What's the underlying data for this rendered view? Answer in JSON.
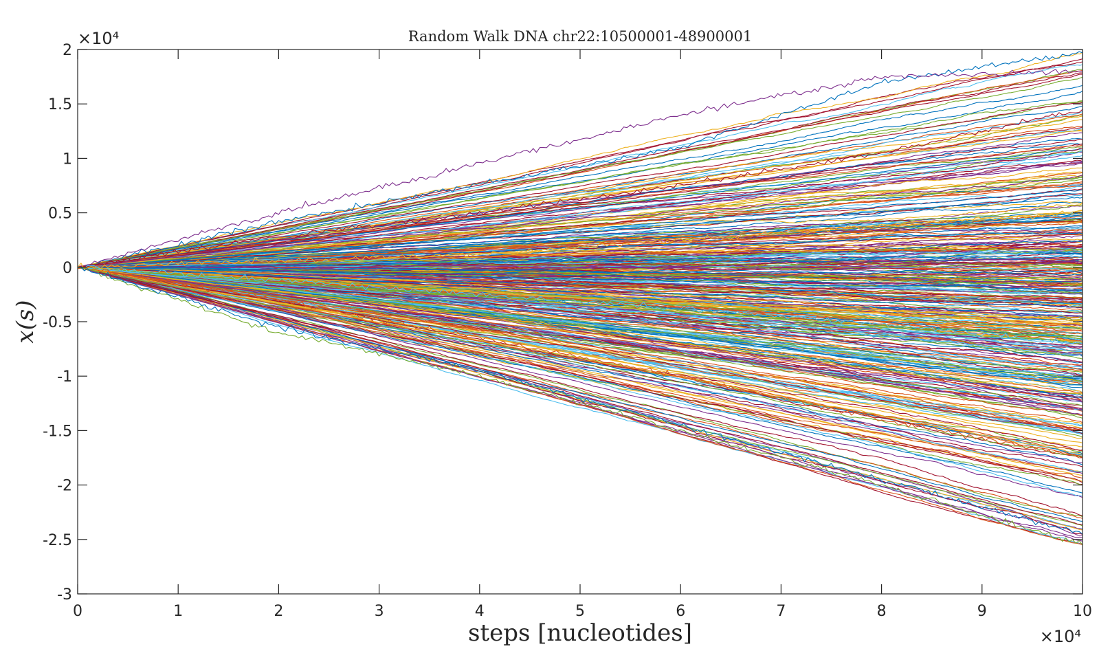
{
  "chart_data": {
    "type": "line",
    "title": "Random Walk DNA chr22:10500001-48900001",
    "xlabel": "steps [nucleotides]",
    "ylabel": "x(s)",
    "x_exponent_label": "×10⁴",
    "y_exponent_label": "×10⁴",
    "xlim": [
      0,
      100000
    ],
    "ylim": [
      -30000,
      20000
    ],
    "x_ticks": [
      0,
      10000,
      20000,
      30000,
      40000,
      50000,
      60000,
      70000,
      80000,
      90000,
      100000
    ],
    "x_tick_labels": [
      "0",
      "1",
      "2",
      "3",
      "4",
      "5",
      "6",
      "7",
      "8",
      "9",
      "10"
    ],
    "y_ticks": [
      20000,
      15000,
      10000,
      5000,
      0,
      -5000,
      -10000,
      -15000,
      -20000,
      -25000,
      -30000
    ],
    "y_tick_labels": [
      "2",
      "1.5",
      "1",
      "0.5",
      "0",
      "-0.5",
      "-1",
      "-1.5",
      "-2",
      "-2.5",
      "-3"
    ],
    "grid": false,
    "box": true,
    "series_colors": [
      "#0072BD",
      "#D95319",
      "#EDB120",
      "#7E2F8E",
      "#77AC30",
      "#4DBEEE",
      "#A2142F"
    ],
    "num_series": 420,
    "series_end_range": [
      -25500,
      19700
    ],
    "series_samples": [
      {
        "x": [
          0,
          20000,
          40000,
          60000,
          80000,
          100000
        ],
        "y": [
          0,
          4200,
          7600,
          11000,
          17000,
          19700
        ]
      },
      {
        "x": [
          0,
          20000,
          40000,
          60000,
          80000,
          100000
        ],
        "y": [
          0,
          5000,
          9500,
          14000,
          17500,
          18000
        ]
      },
      {
        "x": [
          0,
          20000,
          40000,
          60000,
          80000,
          100000
        ],
        "y": [
          0,
          2800,
          5000,
          7500,
          10500,
          14500
        ]
      },
      {
        "x": [
          0,
          20000,
          40000,
          60000,
          80000,
          100000
        ],
        "y": [
          0,
          600,
          1200,
          2500,
          3800,
          5000
        ]
      },
      {
        "x": [
          0,
          20000,
          40000,
          60000,
          80000,
          100000
        ],
        "y": [
          0,
          -1200,
          -2500,
          -3800,
          -5200,
          -7000
        ]
      },
      {
        "x": [
          0,
          20000,
          40000,
          60000,
          80000,
          100000
        ],
        "y": [
          0,
          -3000,
          -6500,
          -10000,
          -14000,
          -17500
        ]
      },
      {
        "x": [
          0,
          20000,
          40000,
          60000,
          80000,
          100000
        ],
        "y": [
          0,
          -6000,
          -10000,
          -15000,
          -20000,
          -25500
        ]
      },
      {
        "x": [
          0,
          20000,
          40000,
          60000,
          80000,
          100000
        ],
        "y": [
          0,
          -5500,
          -9500,
          -14500,
          -19500,
          -24500
        ]
      }
    ]
  }
}
